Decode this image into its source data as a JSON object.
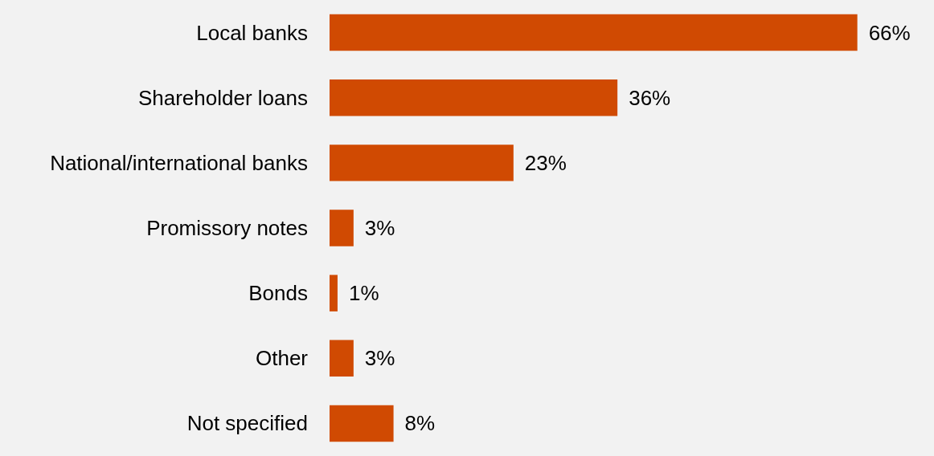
{
  "chart_data": {
    "type": "bar",
    "orientation": "horizontal",
    "categories": [
      "Local banks",
      "Shareholder loans",
      "National/international banks",
      "Promissory notes",
      "Bonds",
      "Other",
      "Not specified"
    ],
    "values": [
      66,
      36,
      23,
      3,
      1,
      3,
      8
    ],
    "value_labels": [
      "66%",
      "36%",
      "23%",
      "3%",
      "1%",
      "3%",
      "8%"
    ],
    "color": "#d04a02"
  }
}
